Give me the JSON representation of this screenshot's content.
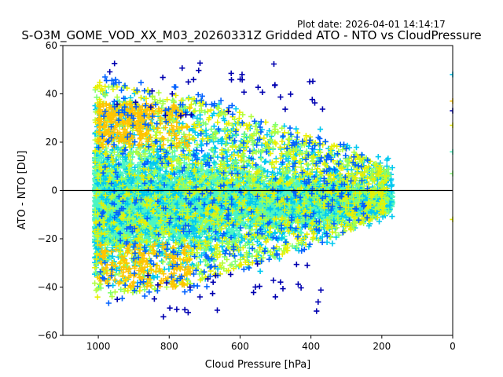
{
  "plot_date": "Plot date: 2026-04-01 14:14:17",
  "chart_data": {
    "type": "scatter",
    "title": "S-O3M_GOME_VOD_XX_M03_20260331Z Gridded ATO - NTO vs CloudPressure",
    "xlabel": "Cloud Pressure [hPa]",
    "ylabel": "ATO - NTO [DU]",
    "xlim": [
      1100,
      0
    ],
    "ylim": [
      -60,
      60
    ],
    "x_inverted": true,
    "xticks": [
      1000,
      800,
      600,
      400,
      200,
      0
    ],
    "yticks": [
      -60,
      -40,
      -20,
      0,
      20,
      40,
      60
    ],
    "marker": "plus",
    "reference_line_y": 0,
    "colormap": "jet",
    "grid": false,
    "legend": "none",
    "point_cloud": {
      "x_range": [
        160,
        1010
      ],
      "y_range": [
        -58,
        58
      ],
      "core_y_range": [
        -30,
        30
      ],
      "note_counts": "dense cloud of several thousand points, densest near y=0, spread narrows toward low pressure"
    },
    "edge_points": [
      {
        "x": 0,
        "y": 48
      },
      {
        "x": 0,
        "y": 37
      },
      {
        "x": 0,
        "y": 33
      },
      {
        "x": 0,
        "y": 27
      },
      {
        "x": 0,
        "y": 16
      },
      {
        "x": 0,
        "y": 7
      },
      {
        "x": 0,
        "y": -12
      }
    ],
    "colors": {
      "turquoise": "#4df5c2",
      "cyan": "#00c8f0",
      "blue": "#0060ff",
      "darkblue": "#0000b0",
      "yellow": "#e8f000",
      "yellowgreen": "#b0ff40",
      "orange": "#ffc400",
      "green": "#80ff70"
    }
  }
}
